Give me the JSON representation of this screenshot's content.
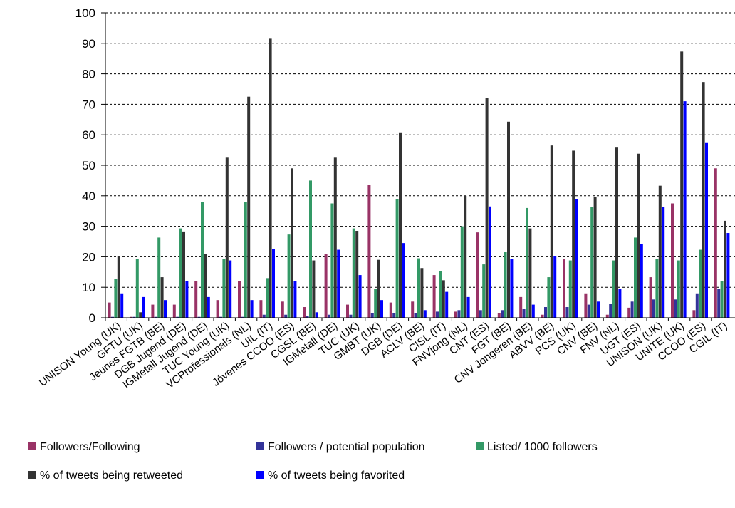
{
  "chart_data": {
    "type": "bar",
    "ylim": [
      0,
      100
    ],
    "yticks": [
      0,
      10,
      20,
      30,
      40,
      50,
      60,
      70,
      80,
      90,
      100
    ],
    "grid": "horizontal dashed",
    "legend_position": "bottom",
    "categories": [
      "UNISON Young (UK)",
      "GFTU (UK)",
      "Jeunes FGTB (BE)",
      "DGB Jugend (DE)",
      "IGMetall Jugend (DE)",
      "TUC Young (UK)",
      "VCProfessionals (NL)",
      "UIL (IT)",
      "Jóvenes CCOO (ES)",
      "CGSL (BE)",
      "IGMetall (DE)",
      "TUC (UK)",
      "GMBT (UK)",
      "DGB (DE)",
      "ACLV (BE)",
      "CISL (IT)",
      "FNVjong (NL)",
      "CNT (ES)",
      "FGT (BE)",
      "CNV Jongeren (BE)",
      "ABVV (BE)",
      "PCS (UK)",
      "CNV (BE)",
      "FNV (NL)",
      "UGT (ES)",
      "UNISON (UK)",
      "UNITE (UK)",
      "CCOO (ES)",
      "CGIL (IT)"
    ],
    "series": [
      {
        "name": "Followers/Following",
        "color": "#993366",
        "values": [
          5,
          0.3,
          4.3,
          4.3,
          12,
          5.8,
          12,
          5.8,
          5.3,
          3.5,
          21,
          4.3,
          43.5,
          5,
          5.3,
          14,
          2,
          28,
          1.5,
          6.8,
          1,
          19.3,
          8,
          1,
          3.3,
          13.3,
          37.5,
          2.5,
          49
        ]
      },
      {
        "name": "Followers / potential population",
        "color": "#333399",
        "values": [
          0.3,
          0.3,
          0.3,
          0.3,
          0.3,
          0.3,
          0.3,
          1,
          1,
          0.5,
          1,
          1,
          1.5,
          1.5,
          1.5,
          2,
          2.5,
          2.5,
          2.5,
          3,
          3.5,
          3.5,
          4.3,
          4.5,
          5.3,
          6,
          6,
          8,
          9.5
        ]
      },
      {
        "name": "Listed/ 1000 followers",
        "color": "#339966",
        "values": [
          12.8,
          19.3,
          26.3,
          29.3,
          38,
          19.3,
          38,
          13,
          27.3,
          45,
          37.5,
          29.3,
          9.5,
          38.8,
          19.5,
          15.3,
          30,
          17.5,
          21.5,
          36,
          13.3,
          18.8,
          36.3,
          18.8,
          26.3,
          19.3,
          18.8,
          22.3,
          12
        ]
      },
      {
        "name": "% of tweets being retweeted",
        "color": "#333333",
        "values": [
          20.3,
          1.8,
          13.3,
          28.3,
          21,
          52.5,
          72.5,
          91.5,
          49,
          18.8,
          52.5,
          28.5,
          19,
          60.8,
          16.3,
          12.3,
          40,
          72,
          64.3,
          29.3,
          56.5,
          54.8,
          39.5,
          55.8,
          53.8,
          43.3,
          87.3,
          77.3,
          31.8
        ]
      },
      {
        "name": "% of tweets being favorited",
        "color": "#0000ff",
        "values": [
          8,
          6.8,
          5.8,
          12,
          6.8,
          18.8,
          5.8,
          22.5,
          12,
          1.8,
          22.3,
          14,
          5.8,
          24.5,
          2.5,
          8.5,
          6.8,
          36.5,
          19.3,
          4.3,
          20.3,
          38.8,
          5.3,
          9.5,
          24.3,
          36.3,
          71,
          57.3,
          27.8
        ]
      }
    ]
  }
}
